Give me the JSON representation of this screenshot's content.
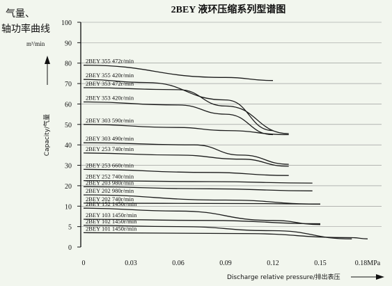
{
  "chart_data": {
    "type": "line",
    "title": "2BEY  液环压缩系列型谱图",
    "corner_label_line1": "气量、",
    "corner_label_line2": "轴功率曲线",
    "y_unit": "m³/min",
    "ylabel": "Capacity/气量",
    "xlabel": "Discharge relative pressure/排出表压",
    "x_unit": "MPa",
    "x_ticks": [
      {
        "value": 0,
        "label": "0"
      },
      {
        "value": 0.03,
        "label": "0.03"
      },
      {
        "value": 0.06,
        "label": "0.06"
      },
      {
        "value": 0.09,
        "label": "0.09"
      },
      {
        "value": 0.12,
        "label": "0.12"
      },
      {
        "value": 0.15,
        "label": "0.15"
      },
      {
        "value": 0.18,
        "label": "0.18MPa"
      }
    ],
    "y_ticks": [
      {
        "level": 0,
        "label": "0"
      },
      {
        "level": 1,
        "label": "5"
      },
      {
        "level": 2,
        "label": "10"
      },
      {
        "level": 3,
        "label": "20"
      },
      {
        "level": 4,
        "label": "30"
      },
      {
        "level": 5,
        "label": "40"
      },
      {
        "level": 6,
        "label": "50"
      },
      {
        "level": 7,
        "label": "60"
      },
      {
        "level": 8,
        "label": "70"
      },
      {
        "level": 9,
        "label": "80"
      },
      {
        "level": 10,
        "label": "90"
      },
      {
        "level": 11,
        "label": "100"
      }
    ],
    "xlim": [
      0,
      0.18
    ],
    "grid": "horizontal",
    "series": [
      {
        "name": "2BEY 355 472r/min",
        "points": [
          [
            0,
            79
          ],
          [
            0.09,
            73
          ],
          [
            0.12,
            71.5
          ]
        ]
      },
      {
        "name": "2BEY 355 420r/min",
        "points": [
          [
            0,
            72
          ],
          [
            0.04,
            70.5
          ],
          [
            0.09,
            62
          ],
          [
            0.12,
            47
          ]
        ]
      },
      {
        "name": "2BEY 353 472r/min",
        "points": [
          [
            0,
            68
          ],
          [
            0.06,
            67
          ],
          [
            0.09,
            59
          ],
          [
            0.13,
            45.5
          ]
        ]
      },
      {
        "name": "2BEY 353 420r/min",
        "points": [
          [
            0,
            61
          ],
          [
            0.06,
            59.5
          ],
          [
            0.09,
            55
          ],
          [
            0.12,
            45
          ]
        ]
      },
      {
        "name": "2BEY 303 590r/min",
        "points": [
          [
            0,
            50
          ],
          [
            0.06,
            48.5
          ],
          [
            0.09,
            47
          ],
          [
            0.13,
            45
          ]
        ]
      },
      {
        "name": "2BEY 303 490r/min",
        "points": [
          [
            0,
            41
          ],
          [
            0.07,
            40
          ],
          [
            0.1,
            35
          ],
          [
            0.13,
            30.5
          ]
        ]
      },
      {
        "name": "2BEY 253 740r/min",
        "points": [
          [
            0,
            36
          ],
          [
            0.06,
            35
          ],
          [
            0.1,
            33
          ],
          [
            0.13,
            29.5
          ]
        ]
      },
      {
        "name": "2BEY 253 660r/min",
        "points": [
          [
            0,
            28
          ],
          [
            0.08,
            26.5
          ],
          [
            0.13,
            25
          ]
        ]
      },
      {
        "name": "2BEY 252 740r/min",
        "points": [
          [
            0,
            22.5
          ],
          [
            0.08,
            22
          ],
          [
            0.145,
            21.3
          ]
        ]
      },
      {
        "name": "2BEY 203 980r/min",
        "points": [
          [
            0,
            19.5
          ],
          [
            0.08,
            18.5
          ],
          [
            0.145,
            17.5
          ]
        ]
      },
      {
        "name": "2BEY 202 980r/min",
        "points": [
          [
            0,
            15.5
          ],
          [
            0.09,
            13
          ],
          [
            0.15,
            11
          ]
        ]
      },
      {
        "name": "2BEY 202 740r/min",
        "points": [
          [
            0,
            11.5
          ],
          [
            0.1,
            11.3
          ],
          [
            0.15,
            11
          ]
        ]
      },
      {
        "name": "2BEY 152 1450r/min",
        "points": [
          [
            0,
            9.5
          ],
          [
            0.06,
            8.8
          ],
          [
            0.12,
            6.5
          ],
          [
            0.15,
            5.5
          ]
        ]
      },
      {
        "name": "2BEY 103 1450r/min",
        "points": [
          [
            0,
            6.8
          ],
          [
            0.08,
            6.5
          ],
          [
            0.15,
            5.7
          ]
        ]
      },
      {
        "name": "2BEY 102 1450r/min",
        "points": [
          [
            0,
            5.3
          ],
          [
            0.06,
            5
          ],
          [
            0.12,
            4
          ],
          [
            0.17,
            2
          ]
        ]
      },
      {
        "name": "2BEY 101 1450r/min",
        "points": [
          [
            0,
            3.5
          ],
          [
            0.1,
            3.3
          ],
          [
            0.17,
            2.3
          ],
          [
            0.18,
            2
          ]
        ]
      }
    ]
  }
}
